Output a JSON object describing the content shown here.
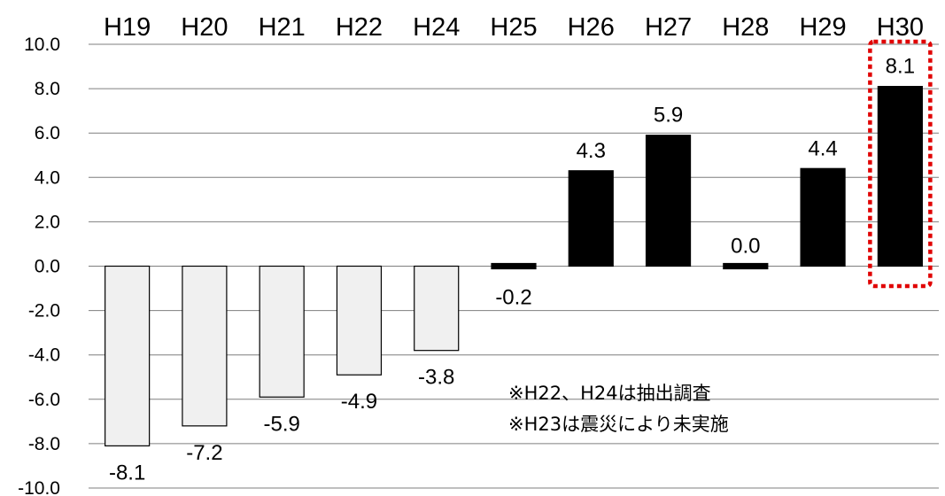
{
  "chart_data": {
    "type": "bar",
    "categories": [
      "H19",
      "H20",
      "H21",
      "H22",
      "H24",
      "H25",
      "H26",
      "H27",
      "H28",
      "H29",
      "H30"
    ],
    "values": [
      -8.1,
      -7.2,
      -5.9,
      -4.9,
      -3.8,
      -0.2,
      4.3,
      5.9,
      0.0,
      4.4,
      8.1
    ],
    "data_labels": [
      "-8.1",
      "-7.2",
      "-5.9",
      "-4.9",
      "-3.8",
      "-0.2",
      "4.3",
      "5.9",
      "0.0",
      "4.4",
      "8.1"
    ],
    "yticks": [
      "10.0",
      "8.0",
      "6.0",
      "4.0",
      "2.0",
      "0.0",
      "-2.0",
      "-4.0",
      "-6.0",
      "-8.0",
      "-10.0"
    ],
    "ylim": [
      -10,
      10
    ],
    "grid": true,
    "category_axis_position": "top",
    "highlighted_category": "H30",
    "colors": {
      "negative_fill": "#f0f0f0",
      "negative_stroke": "#000000",
      "positive_fill": "#000000",
      "grid": "#7f7f7f",
      "highlight_box": "#e00000"
    },
    "annotations": [
      "※H22、H24は抽出調査",
      "※H23は震災により未実施"
    ]
  }
}
